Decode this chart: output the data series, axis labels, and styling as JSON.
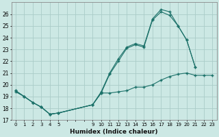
{
  "xlabel": "Humidex (Indice chaleur)",
  "bg_color": "#cce8e4",
  "grid_color": "#aaccc8",
  "line_color": "#1a7068",
  "ylim": [
    17,
    27
  ],
  "xlim": [
    -0.5,
    23.5
  ],
  "yticks": [
    17,
    18,
    19,
    20,
    21,
    22,
    23,
    24,
    25,
    26
  ],
  "xtick_positions": [
    0,
    1,
    2,
    3,
    4,
    5,
    9,
    10,
    11,
    12,
    13,
    14,
    15,
    16,
    17,
    18,
    19,
    20,
    21,
    22,
    23
  ],
  "xtick_labels": [
    "0",
    "1",
    "2",
    "3",
    "4",
    "5",
    "9",
    "10",
    "11",
    "12",
    "13",
    "14",
    "15",
    "16",
    "17",
    "18",
    "19",
    "20",
    "21",
    "22",
    "23"
  ],
  "line1_x": [
    0,
    1,
    2,
    3,
    4,
    5,
    9,
    10,
    11,
    12,
    13,
    14,
    15,
    16,
    17,
    18,
    19,
    20,
    21
  ],
  "line1_y": [
    19.5,
    19.0,
    18.5,
    18.1,
    17.5,
    17.6,
    18.3,
    19.4,
    21.0,
    22.2,
    23.2,
    23.5,
    23.3,
    25.6,
    26.4,
    26.2,
    25.0,
    23.8,
    21.5
  ],
  "line2_x": [
    0,
    1,
    2,
    3,
    4,
    5,
    9,
    10,
    11,
    12,
    13,
    14,
    15,
    16,
    17,
    18,
    19,
    20,
    21
  ],
  "line2_y": [
    19.5,
    19.0,
    18.5,
    18.1,
    17.5,
    17.6,
    18.3,
    19.3,
    20.9,
    22.0,
    23.1,
    23.4,
    23.2,
    25.5,
    26.2,
    25.9,
    25.0,
    23.8,
    21.5
  ],
  "line3_x": [
    0,
    1,
    2,
    3,
    4,
    5,
    9,
    10,
    11,
    12,
    13,
    14,
    15,
    16,
    17,
    18,
    19,
    20,
    21,
    22,
    23
  ],
  "line3_y": [
    19.4,
    19.0,
    18.5,
    18.1,
    17.5,
    17.6,
    18.3,
    19.3,
    19.3,
    19.4,
    19.5,
    19.8,
    19.8,
    20.0,
    20.4,
    20.7,
    20.9,
    21.0,
    20.8,
    20.8,
    20.8
  ]
}
